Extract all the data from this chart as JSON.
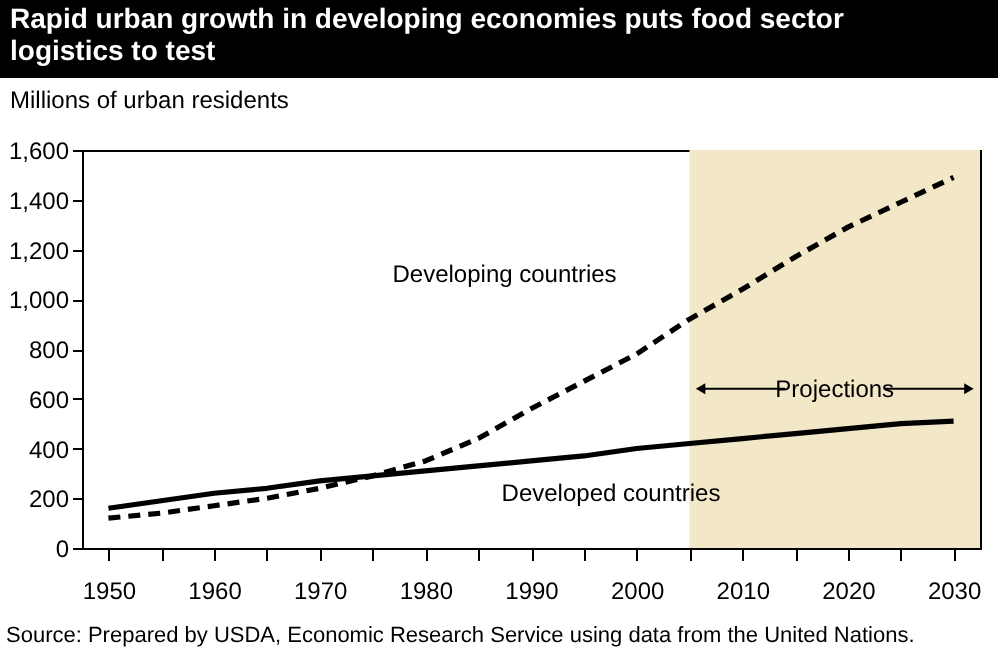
{
  "chart_data": {
    "type": "line",
    "title": "Rapid urban growth in developing economies puts food sector\nlogistics to test",
    "ylabel": "Millions of urban residents",
    "x": [
      1950,
      1955,
      1960,
      1965,
      1970,
      1975,
      1980,
      1985,
      1990,
      1995,
      2000,
      2005,
      2010,
      2015,
      2020,
      2025,
      2030
    ],
    "series": [
      {
        "name": "Developing countries",
        "color": "#000000",
        "line_style": "dashed",
        "values": [
          120,
          140,
          170,
          200,
          240,
          290,
          350,
          440,
          560,
          670,
          780,
          920,
          1040,
          1170,
          1290,
          1390,
          1490
        ]
      },
      {
        "name": "Developed countries",
        "color": "#000000",
        "line_style": "solid",
        "values": [
          160,
          190,
          220,
          240,
          270,
          290,
          310,
          330,
          350,
          370,
          400,
          420,
          440,
          460,
          480,
          500,
          510
        ]
      }
    ],
    "xlim": [
      1947.5,
      2032.5
    ],
    "ylim": [
      0,
      1600
    ],
    "xticks": [
      1950,
      {
        "value": 1955,
        "label": null
      },
      1960,
      {
        "value": 1965,
        "label": null
      },
      1970,
      {
        "value": 1975,
        "label": null
      },
      1980,
      {
        "value": 1985,
        "label": null
      },
      1990,
      {
        "value": 1995,
        "label": null
      },
      2000,
      {
        "value": 2005,
        "label": null
      },
      2010,
      {
        "value": 2015,
        "label": null
      },
      2020,
      {
        "value": 2025,
        "label": null
      },
      2030
    ],
    "yticks": [
      0,
      200,
      400,
      600,
      800,
      {
        "value": 1000,
        "label": "1,000"
      },
      {
        "value": 1200,
        "label": "1,200"
      },
      {
        "value": 1400,
        "label": "1,400"
      },
      {
        "value": 1600,
        "label": "1,600"
      }
    ],
    "bands": [
      {
        "axis": "x",
        "from": 2005,
        "to": 2032.5,
        "label": "Projections",
        "color": "#f2e7c6"
      }
    ],
    "grid": false,
    "marker": "none",
    "annotations": [
      "Source: Prepared by USDA, Economic Research Service using data from the United Nations."
    ]
  }
}
